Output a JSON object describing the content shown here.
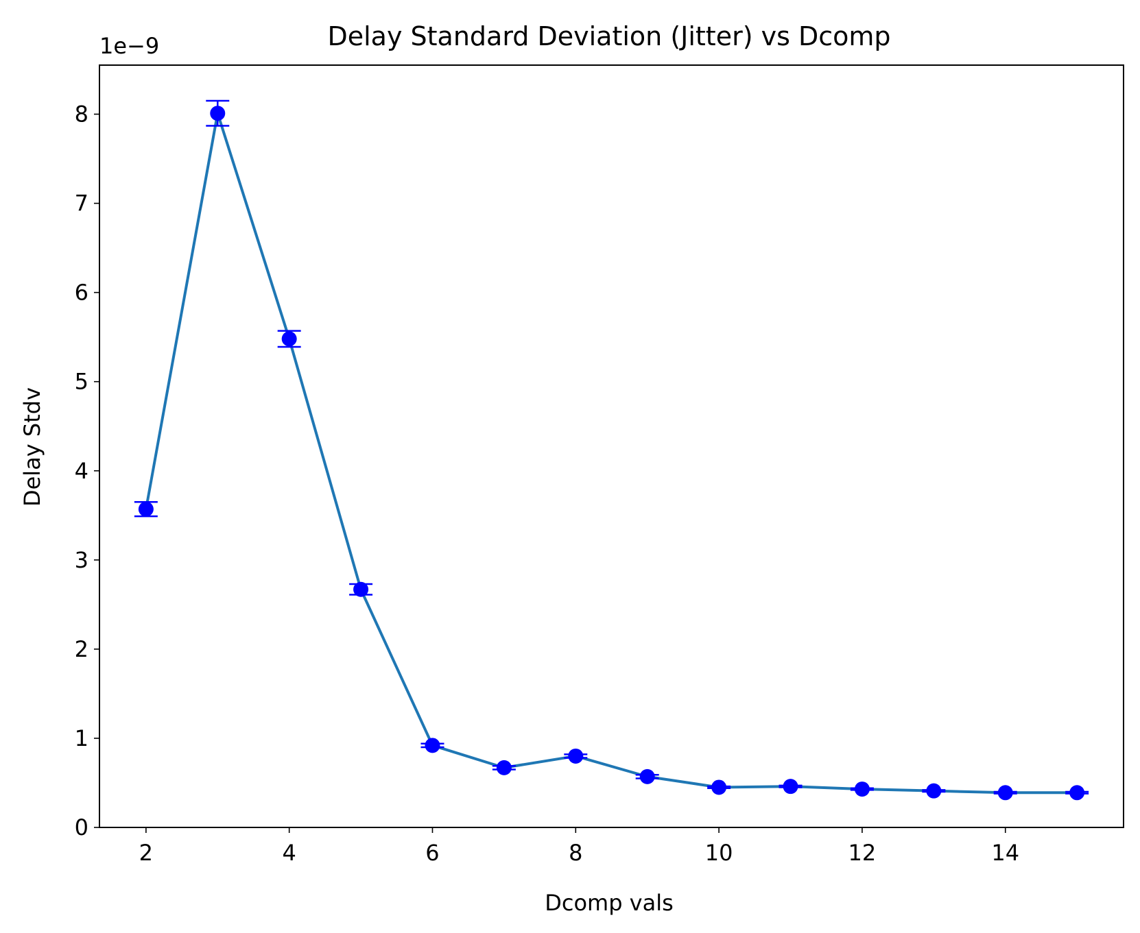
{
  "chart_data": {
    "type": "line",
    "title": "Delay Standard Deviation (Jitter) vs Dcomp",
    "xlabel": "Dcomp vals",
    "ylabel": "Delay Stdv",
    "y_offset_label": "1e−9",
    "xlim": [
      1.35,
      15.65
    ],
    "ylim": [
      0,
      8.55
    ],
    "x_ticks": [
      2,
      4,
      6,
      8,
      10,
      12,
      14
    ],
    "x_tick_labels": [
      "2",
      "4",
      "6",
      "8",
      "10",
      "12",
      "14"
    ],
    "y_ticks": [
      0,
      1,
      2,
      3,
      4,
      5,
      6,
      7,
      8
    ],
    "y_tick_labels": [
      "0",
      "1",
      "2",
      "3",
      "4",
      "5",
      "6",
      "7",
      "8"
    ],
    "grid": false,
    "series": [
      {
        "name": "Delay Stdv",
        "line_color": "#1f77b4",
        "marker_color": "#0000ff",
        "x": [
          2,
          3,
          4,
          5,
          6,
          7,
          8,
          9,
          10,
          11,
          12,
          13,
          14,
          15
        ],
        "values": [
          3.57,
          8.01,
          5.48,
          2.67,
          0.92,
          0.67,
          0.8,
          0.57,
          0.45,
          0.46,
          0.43,
          0.41,
          0.39,
          0.39
        ],
        "errors": [
          0.08,
          0.14,
          0.09,
          0.06,
          0.02,
          0.02,
          0.02,
          0.02,
          0.01,
          0.01,
          0.01,
          0.01,
          0.01,
          0.01
        ]
      }
    ]
  }
}
